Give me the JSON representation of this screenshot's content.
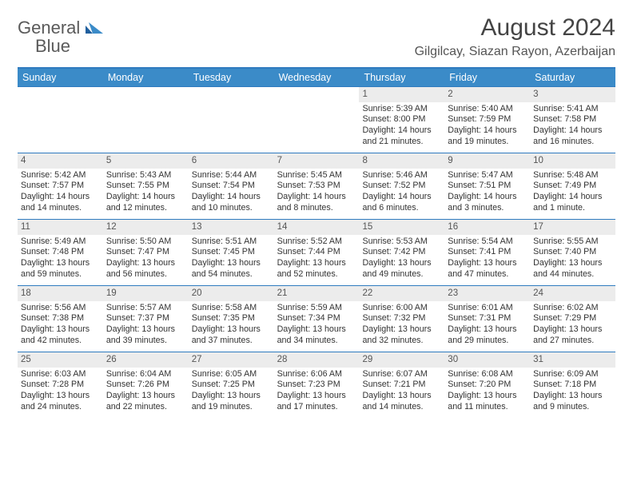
{
  "logo": {
    "word1": "General",
    "word2": "Blue"
  },
  "title": "August 2024",
  "location": "Gilgilcay, Siazan Rayon, Azerbaijan",
  "colors": {
    "header_bg": "#3b8bc8",
    "rule": "#2f7bbf",
    "daynum_bg": "#ececec",
    "text": "#333333"
  },
  "daysOfWeek": [
    "Sunday",
    "Monday",
    "Tuesday",
    "Wednesday",
    "Thursday",
    "Friday",
    "Saturday"
  ],
  "weeks": [
    [
      {
        "n": "",
        "empty": true
      },
      {
        "n": "",
        "empty": true
      },
      {
        "n": "",
        "empty": true
      },
      {
        "n": "",
        "empty": true
      },
      {
        "n": "1",
        "sr": "Sunrise: 5:39 AM",
        "ss": "Sunset: 8:00 PM",
        "d1": "Daylight: 14 hours",
        "d2": "and 21 minutes."
      },
      {
        "n": "2",
        "sr": "Sunrise: 5:40 AM",
        "ss": "Sunset: 7:59 PM",
        "d1": "Daylight: 14 hours",
        "d2": "and 19 minutes."
      },
      {
        "n": "3",
        "sr": "Sunrise: 5:41 AM",
        "ss": "Sunset: 7:58 PM",
        "d1": "Daylight: 14 hours",
        "d2": "and 16 minutes."
      }
    ],
    [
      {
        "n": "4",
        "sr": "Sunrise: 5:42 AM",
        "ss": "Sunset: 7:57 PM",
        "d1": "Daylight: 14 hours",
        "d2": "and 14 minutes."
      },
      {
        "n": "5",
        "sr": "Sunrise: 5:43 AM",
        "ss": "Sunset: 7:55 PM",
        "d1": "Daylight: 14 hours",
        "d2": "and 12 minutes."
      },
      {
        "n": "6",
        "sr": "Sunrise: 5:44 AM",
        "ss": "Sunset: 7:54 PM",
        "d1": "Daylight: 14 hours",
        "d2": "and 10 minutes."
      },
      {
        "n": "7",
        "sr": "Sunrise: 5:45 AM",
        "ss": "Sunset: 7:53 PM",
        "d1": "Daylight: 14 hours",
        "d2": "and 8 minutes."
      },
      {
        "n": "8",
        "sr": "Sunrise: 5:46 AM",
        "ss": "Sunset: 7:52 PM",
        "d1": "Daylight: 14 hours",
        "d2": "and 6 minutes."
      },
      {
        "n": "9",
        "sr": "Sunrise: 5:47 AM",
        "ss": "Sunset: 7:51 PM",
        "d1": "Daylight: 14 hours",
        "d2": "and 3 minutes."
      },
      {
        "n": "10",
        "sr": "Sunrise: 5:48 AM",
        "ss": "Sunset: 7:49 PM",
        "d1": "Daylight: 14 hours",
        "d2": "and 1 minute."
      }
    ],
    [
      {
        "n": "11",
        "sr": "Sunrise: 5:49 AM",
        "ss": "Sunset: 7:48 PM",
        "d1": "Daylight: 13 hours",
        "d2": "and 59 minutes."
      },
      {
        "n": "12",
        "sr": "Sunrise: 5:50 AM",
        "ss": "Sunset: 7:47 PM",
        "d1": "Daylight: 13 hours",
        "d2": "and 56 minutes."
      },
      {
        "n": "13",
        "sr": "Sunrise: 5:51 AM",
        "ss": "Sunset: 7:45 PM",
        "d1": "Daylight: 13 hours",
        "d2": "and 54 minutes."
      },
      {
        "n": "14",
        "sr": "Sunrise: 5:52 AM",
        "ss": "Sunset: 7:44 PM",
        "d1": "Daylight: 13 hours",
        "d2": "and 52 minutes."
      },
      {
        "n": "15",
        "sr": "Sunrise: 5:53 AM",
        "ss": "Sunset: 7:42 PM",
        "d1": "Daylight: 13 hours",
        "d2": "and 49 minutes."
      },
      {
        "n": "16",
        "sr": "Sunrise: 5:54 AM",
        "ss": "Sunset: 7:41 PM",
        "d1": "Daylight: 13 hours",
        "d2": "and 47 minutes."
      },
      {
        "n": "17",
        "sr": "Sunrise: 5:55 AM",
        "ss": "Sunset: 7:40 PM",
        "d1": "Daylight: 13 hours",
        "d2": "and 44 minutes."
      }
    ],
    [
      {
        "n": "18",
        "sr": "Sunrise: 5:56 AM",
        "ss": "Sunset: 7:38 PM",
        "d1": "Daylight: 13 hours",
        "d2": "and 42 minutes."
      },
      {
        "n": "19",
        "sr": "Sunrise: 5:57 AM",
        "ss": "Sunset: 7:37 PM",
        "d1": "Daylight: 13 hours",
        "d2": "and 39 minutes."
      },
      {
        "n": "20",
        "sr": "Sunrise: 5:58 AM",
        "ss": "Sunset: 7:35 PM",
        "d1": "Daylight: 13 hours",
        "d2": "and 37 minutes."
      },
      {
        "n": "21",
        "sr": "Sunrise: 5:59 AM",
        "ss": "Sunset: 7:34 PM",
        "d1": "Daylight: 13 hours",
        "d2": "and 34 minutes."
      },
      {
        "n": "22",
        "sr": "Sunrise: 6:00 AM",
        "ss": "Sunset: 7:32 PM",
        "d1": "Daylight: 13 hours",
        "d2": "and 32 minutes."
      },
      {
        "n": "23",
        "sr": "Sunrise: 6:01 AM",
        "ss": "Sunset: 7:31 PM",
        "d1": "Daylight: 13 hours",
        "d2": "and 29 minutes."
      },
      {
        "n": "24",
        "sr": "Sunrise: 6:02 AM",
        "ss": "Sunset: 7:29 PM",
        "d1": "Daylight: 13 hours",
        "d2": "and 27 minutes."
      }
    ],
    [
      {
        "n": "25",
        "sr": "Sunrise: 6:03 AM",
        "ss": "Sunset: 7:28 PM",
        "d1": "Daylight: 13 hours",
        "d2": "and 24 minutes."
      },
      {
        "n": "26",
        "sr": "Sunrise: 6:04 AM",
        "ss": "Sunset: 7:26 PM",
        "d1": "Daylight: 13 hours",
        "d2": "and 22 minutes."
      },
      {
        "n": "27",
        "sr": "Sunrise: 6:05 AM",
        "ss": "Sunset: 7:25 PM",
        "d1": "Daylight: 13 hours",
        "d2": "and 19 minutes."
      },
      {
        "n": "28",
        "sr": "Sunrise: 6:06 AM",
        "ss": "Sunset: 7:23 PM",
        "d1": "Daylight: 13 hours",
        "d2": "and 17 minutes."
      },
      {
        "n": "29",
        "sr": "Sunrise: 6:07 AM",
        "ss": "Sunset: 7:21 PM",
        "d1": "Daylight: 13 hours",
        "d2": "and 14 minutes."
      },
      {
        "n": "30",
        "sr": "Sunrise: 6:08 AM",
        "ss": "Sunset: 7:20 PM",
        "d1": "Daylight: 13 hours",
        "d2": "and 11 minutes."
      },
      {
        "n": "31",
        "sr": "Sunrise: 6:09 AM",
        "ss": "Sunset: 7:18 PM",
        "d1": "Daylight: 13 hours",
        "d2": "and 9 minutes."
      }
    ]
  ]
}
